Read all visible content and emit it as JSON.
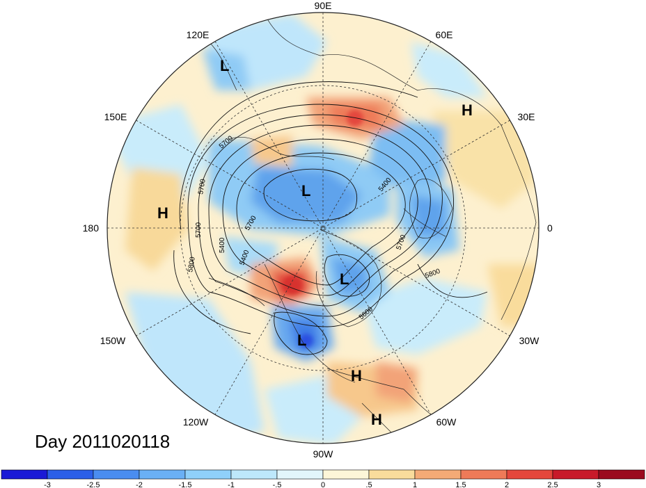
{
  "map": {
    "longitude_labels": [
      {
        "text": "90E",
        "lon": 90
      },
      {
        "text": "60E",
        "lon": 60
      },
      {
        "text": "30E",
        "lon": 30
      },
      {
        "text": "0",
        "lon": 0
      },
      {
        "text": "30W",
        "lon": -30
      },
      {
        "text": "60W",
        "lon": -60
      },
      {
        "text": "90W",
        "lon": -90
      },
      {
        "text": "120W",
        "lon": -120
      },
      {
        "text": "150W",
        "lon": -150
      },
      {
        "text": "180",
        "lon": 180
      },
      {
        "text": "150E",
        "lon": 150
      },
      {
        "text": "120E",
        "lon": 120
      }
    ],
    "pressure_centers": [
      {
        "type": "L",
        "near": "east Asia coast"
      },
      {
        "type": "L",
        "near": "Siberia / north pole"
      },
      {
        "type": "L",
        "near": "Hudson Bay"
      },
      {
        "type": "L",
        "near": "southern United States"
      },
      {
        "type": "H",
        "near": "north Africa"
      },
      {
        "type": "H",
        "near": "central Pacific"
      },
      {
        "type": "H",
        "near": "Caribbean"
      },
      {
        "type": "H",
        "near": "northern South America"
      }
    ],
    "contour_labels": [
      "5700",
      "5700",
      "5700",
      "5700",
      "5400",
      "5800",
      "5400",
      "5700",
      "5800",
      "5600",
      "5400"
    ]
  },
  "title": "Day 2011020118",
  "colorbar": {
    "tick_labels": [
      "-3",
      "-2.5",
      "-2",
      "-1.5",
      "-1",
      "-.5",
      "0",
      ".5",
      "1",
      "1.5",
      "2",
      "2.5",
      "3"
    ],
    "colors": [
      "#1a1ad6",
      "#2b5fe8",
      "#4a8df0",
      "#6ab0f5",
      "#8fd0fa",
      "#bde8fb",
      "#e2f6fb",
      "#fdf6d8",
      "#f9dc9c",
      "#f4aa76",
      "#ee7a58",
      "#e4473c",
      "#c81a2a",
      "#9b0a1e"
    ]
  }
}
